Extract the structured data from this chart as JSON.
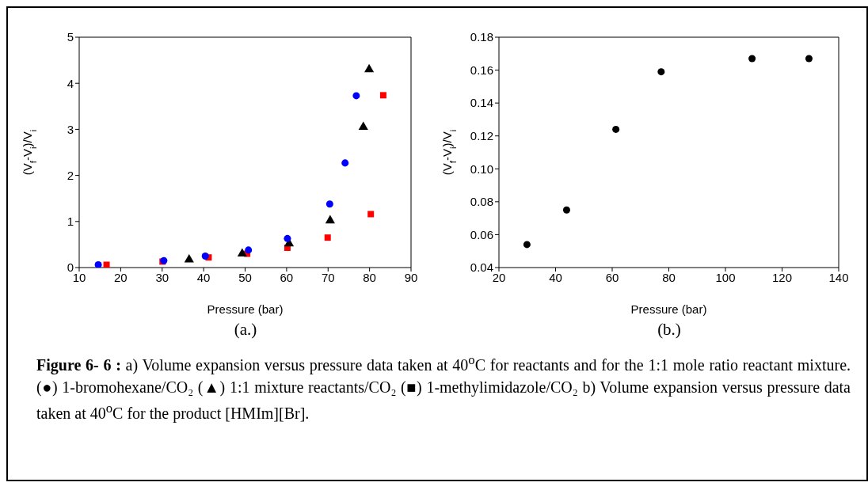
{
  "chart_data": [
    {
      "type": "scatter",
      "subtitle": "(a.)",
      "xlabel": "Pressure (bar)",
      "ylabel": "(V$_{f}$-V$_{i}$)/V$_{i}$",
      "xlim": [
        10,
        90
      ],
      "xticks": [
        10,
        20,
        30,
        40,
        50,
        60,
        70,
        80,
        90
      ],
      "ylim": [
        0,
        5
      ],
      "yticks": [
        0,
        1,
        2,
        3,
        4,
        5
      ],
      "grid": false,
      "legend": false,
      "series": [
        {
          "color": "#0000ff",
          "marker": "circle",
          "x": [
            14.6,
            30.4,
            40.4,
            50.8,
            60.2,
            70.4,
            74.1,
            76.8
          ],
          "values": [
            0.06,
            0.15,
            0.25,
            0.38,
            0.63,
            1.38,
            2.27,
            3.73
          ]
        },
        {
          "color": "#000000",
          "marker": "triangle",
          "x": [
            36.5,
            49.3,
            60.6,
            70.5,
            78.5,
            79.9
          ],
          "values": [
            0.17,
            0.3,
            0.52,
            1.02,
            3.05,
            4.3
          ]
        },
        {
          "color": "#ff0000",
          "marker": "square",
          "x": [
            16.6,
            30.1,
            41.2,
            50.5,
            60.2,
            69.9,
            80.3,
            83.3
          ],
          "values": [
            0.06,
            0.13,
            0.22,
            0.3,
            0.43,
            0.65,
            1.16,
            3.74
          ]
        }
      ],
      "annotations": [
        "Figure 6- 6 :",
        "a) Volume expansion versus pressure data taken at 40$^{o}$C for reactants and for the 1:1 mole ratio reactant mixture. (●) 1-bromohexane/CO₂ (▲) 1:1 mixture reactants/CO₂ (■) 1-methylimidazole/CO₂ b) Volume expansion versus pressure data taken at 40$^{o}$C for the product [HMIm][Br]."
      ]
    },
    {
      "type": "scatter",
      "subtitle": "(b.)",
      "xlabel": "Pressure (bar)",
      "ylabel": "(V$_{f}$-V$_{i}$)/V$_{i}$",
      "xlim": [
        20,
        140
      ],
      "xticks": [
        20,
        40,
        60,
        80,
        100,
        120,
        140
      ],
      "ylim": [
        0.04,
        0.18
      ],
      "yticks": [
        0.04,
        0.06,
        0.08,
        {
          "value": 0.1,
          "label": "0.10"
        },
        0.12,
        0.14,
        0.16,
        0.18
      ],
      "grid": false,
      "legend": false,
      "series": [
        {
          "color": "#000000",
          "marker": "circle",
          "x": [
            29.9,
            43.9,
            61.3,
            77.3,
            109.4,
            129.5
          ],
          "values": [
            0.054,
            0.075,
            0.124,
            0.159,
            0.167,
            0.167
          ]
        }
      ]
    }
  ]
}
